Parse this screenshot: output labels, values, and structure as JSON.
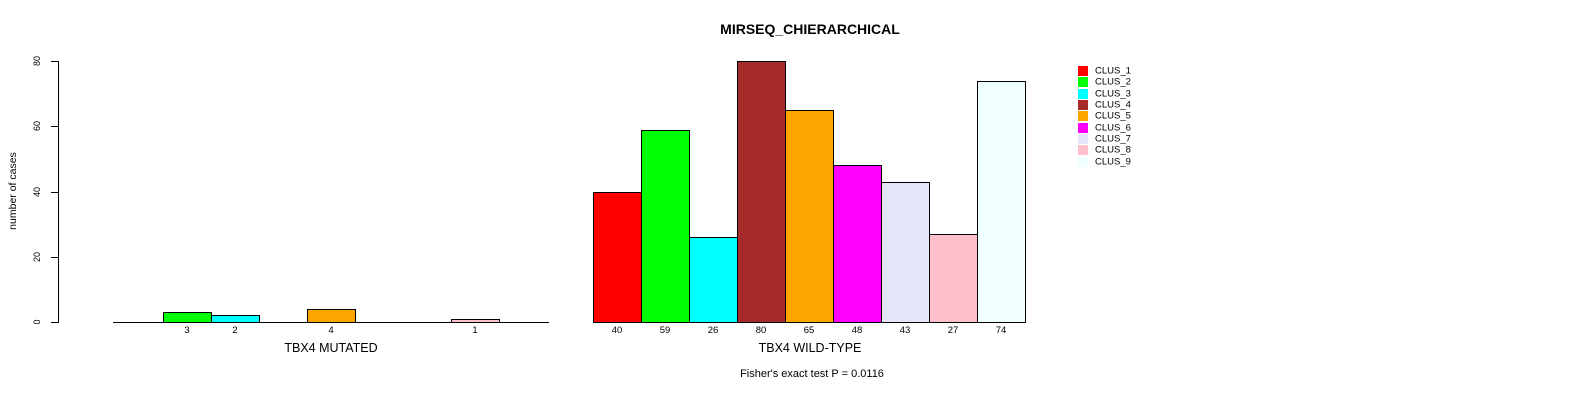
{
  "title": "MIRSEQ_CHIERARCHICAL",
  "y_axis": {
    "label": "number of cases"
  },
  "annotation": "Fisher's exact test P = 0.0116",
  "legend": {
    "items": [
      {
        "label": "CLUS_1",
        "color": "#FF0000"
      },
      {
        "label": "CLUS_2",
        "color": "#00FF00"
      },
      {
        "label": "CLUS_3",
        "color": "#00FFFF"
      },
      {
        "label": "CLUS_4",
        "color": "#A52A2A"
      },
      {
        "label": "CLUS_5",
        "color": "#FFA500"
      },
      {
        "label": "CLUS_6",
        "color": "#FF00FF"
      },
      {
        "label": "CLUS_7",
        "color": "#E6E6FA"
      },
      {
        "label": "CLUS_8",
        "color": "#FFC0CB"
      },
      {
        "label": "CLUS_9",
        "color": "#F0FFFF"
      }
    ]
  },
  "chart_data": {
    "type": "bar",
    "title": "MIRSEQ_CHIERARCHICAL",
    "ylabel": "number of cases",
    "xlabel": "",
    "ylim": [
      0,
      80
    ],
    "yticks": [
      0,
      20,
      40,
      60,
      80
    ],
    "grid": false,
    "legend_position": "top-right",
    "categories": [
      "CLUS_1",
      "CLUS_2",
      "CLUS_3",
      "CLUS_4",
      "CLUS_5",
      "CLUS_6",
      "CLUS_7",
      "CLUS_8",
      "CLUS_9"
    ],
    "colors": [
      "#FF0000",
      "#00FF00",
      "#00FFFF",
      "#A52A2A",
      "#FFA500",
      "#FF00FF",
      "#E6E6FA",
      "#FFC0CB",
      "#F0FFFF"
    ],
    "groups": [
      {
        "label": "TBX4 MUTATED",
        "values": [
          0,
          3,
          2,
          0,
          4,
          0,
          0,
          1,
          0
        ]
      },
      {
        "label": "TBX4 WILD-TYPE",
        "values": [
          40,
          59,
          26,
          80,
          65,
          48,
          43,
          27,
          74
        ]
      }
    ],
    "bar_labels": "values shown under each nonzero bar",
    "annotation": "Fisher's exact test P = 0.0116"
  }
}
